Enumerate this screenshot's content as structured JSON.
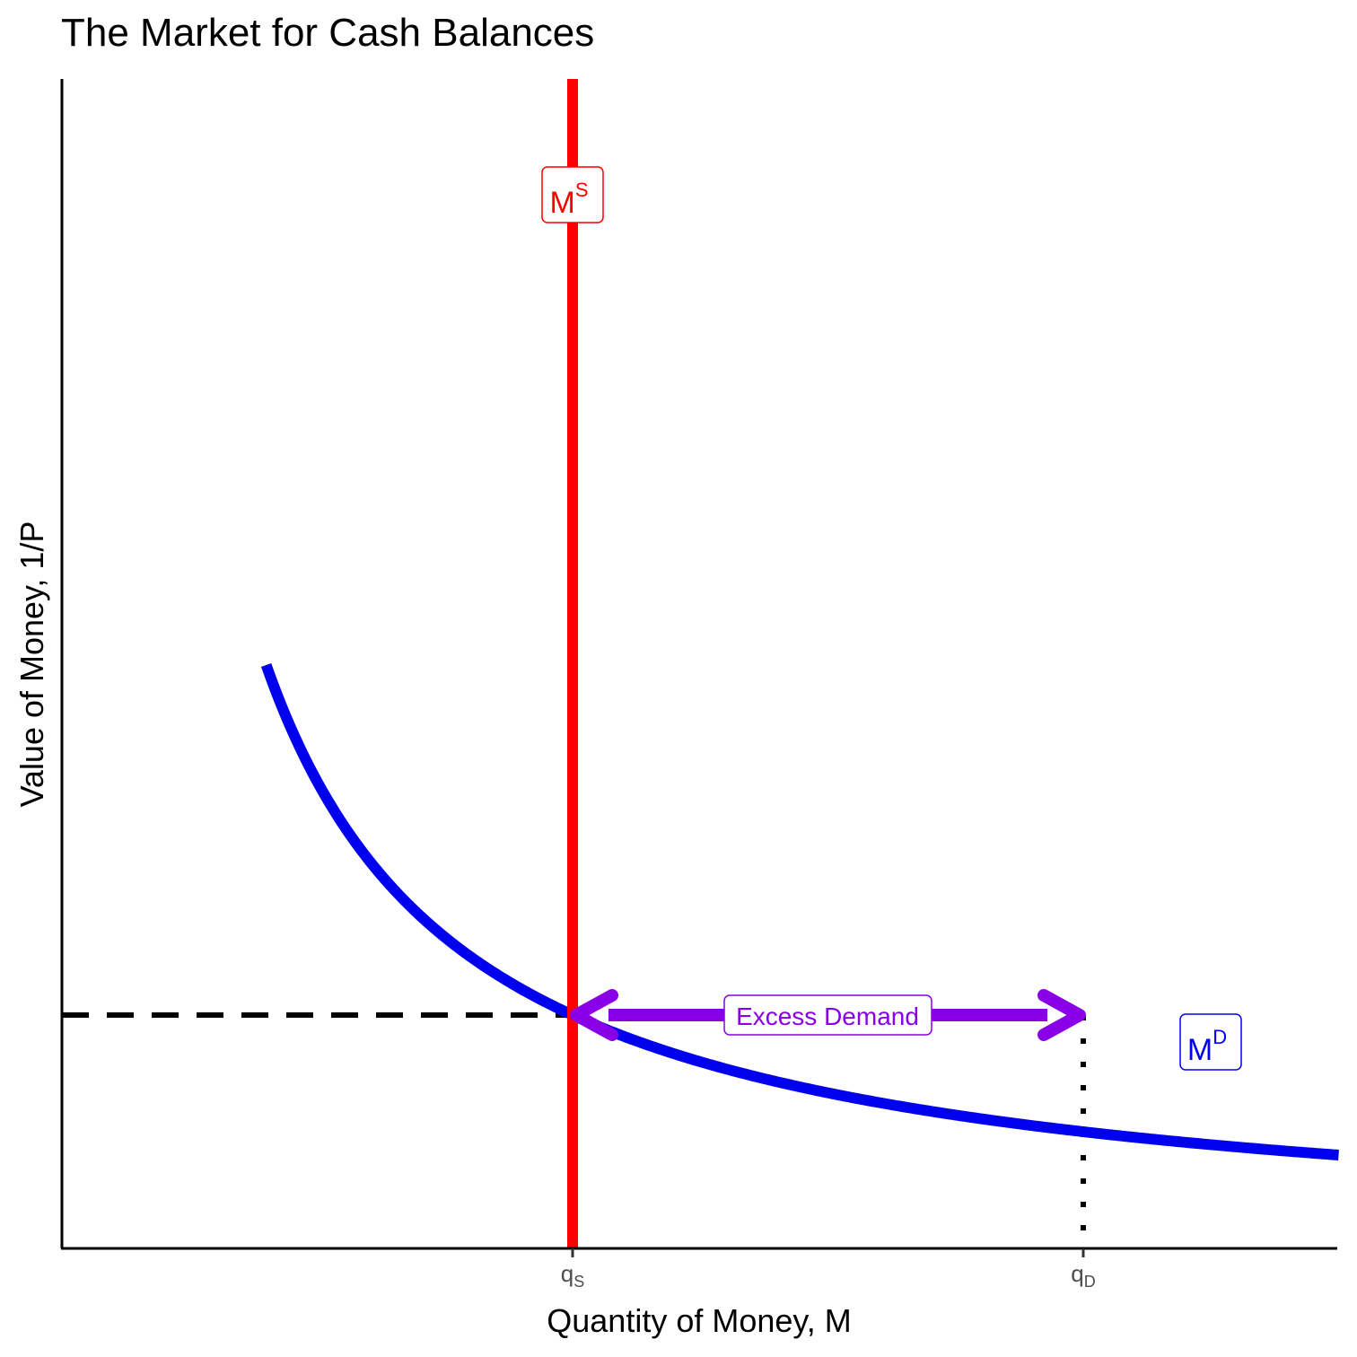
{
  "chart_data": {
    "type": "line",
    "title": "The Market for Cash Balances",
    "xlabel": "Quantity of Money, M",
    "ylabel": "Value of Money, 1/P",
    "xlim": [
      0,
      10
    ],
    "ylim": [
      0,
      10
    ],
    "x_ticks": [
      {
        "x": 4,
        "label": "q",
        "sub": "S"
      },
      {
        "x": 8,
        "label": "q",
        "sub": "D"
      }
    ],
    "series": [
      {
        "name": "M^S",
        "label": "M",
        "sup": "S",
        "color": "#ff0000",
        "kind": "vertical",
        "x": 4
      },
      {
        "name": "M^D",
        "label": "M",
        "sup": "D",
        "color": "#0000ee",
        "kind": "curve",
        "k": 8,
        "x_from": 1.6,
        "x_to": 10
      }
    ],
    "guides": {
      "horizontal_dashed_y": 2,
      "vertical_dotted_x": 8,
      "color": "#000000"
    },
    "annotation": {
      "text": "Excess Demand",
      "from_x": 4,
      "to_x": 8,
      "y": 2,
      "color": "#8a00e6"
    },
    "grid": false,
    "legend": "none"
  }
}
